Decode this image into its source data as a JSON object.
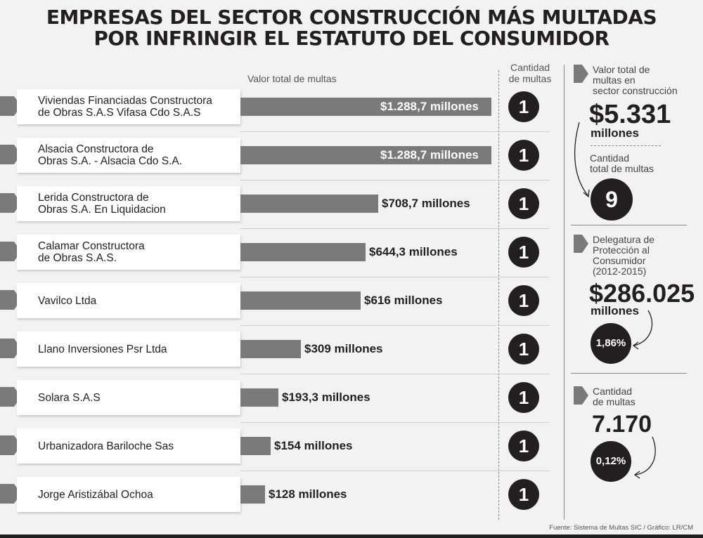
{
  "title": {
    "line1": "EMPRESAS DEL SECTOR CONSTRUCCIÓN MÁS MULTADAS",
    "line2": "POR INFRINGIR EL ESTATUTO DEL CONSUMIDOR"
  },
  "headers": {
    "value": "Valor total de multas",
    "count": "Cantidad\nde multas"
  },
  "colors": {
    "bar": "#7a7a7c",
    "circle": "#231f20",
    "background": "#f2f2f3"
  },
  "chart_data": {
    "type": "bar",
    "orientation": "horizontal",
    "categories": [
      "Viviendas Financiadas Constructora\nde Obras S.A.S Vifasa Cdo S.A.S",
      "Alsacia Constructora de\nObras S.A. - Alsacia Cdo S.A.",
      "Lerida Constructora de\nObras S.A. En Liquidacion",
      "Calamar Constructora\nde Obras S.A.S.",
      "Vavilco Ltda",
      "Llano Inversiones Psr Ltda",
      "Solara S.A.S",
      "Urbanizadora Bariloche Sas",
      "Jorge Aristizábal Ochoa"
    ],
    "values": [
      1288.7,
      1288.7,
      708.7,
      644.3,
      616,
      309,
      193.3,
      154,
      128
    ],
    "value_labels": [
      "$1.288,7 millones",
      "$1.288,7 millones",
      "$708,7 millones",
      "$644,3 millones",
      "$616 millones",
      "$309 millones",
      "$193,3 millones",
      "$154 millones",
      "$128 millones"
    ],
    "counts": [
      "1",
      "1",
      "1",
      "1",
      "1",
      "1",
      "1",
      "1",
      "1"
    ],
    "xlim": [
      0,
      1288.7
    ]
  },
  "panel": {
    "total_value_label": "Valor total de\nmultas en\nsector construcción",
    "total_value": "$5.331",
    "total_value_unit": "millones",
    "total_count_label": "Cantidad\ntotal de multas",
    "total_count": "9",
    "delegatura_label": "Delegatura de\nProtección al\nConsumidor\n(2012-2015)",
    "delegatura_value": "$286.025",
    "delegatura_unit": "millones",
    "delegatura_pct": "1,86%",
    "multas_label": "Cantidad\nde multas",
    "multas_value": "7.170",
    "multas_pct": "0,12%"
  },
  "source": "Fuente: Sistema de Multas SIC / Gráfico: LR/CM"
}
